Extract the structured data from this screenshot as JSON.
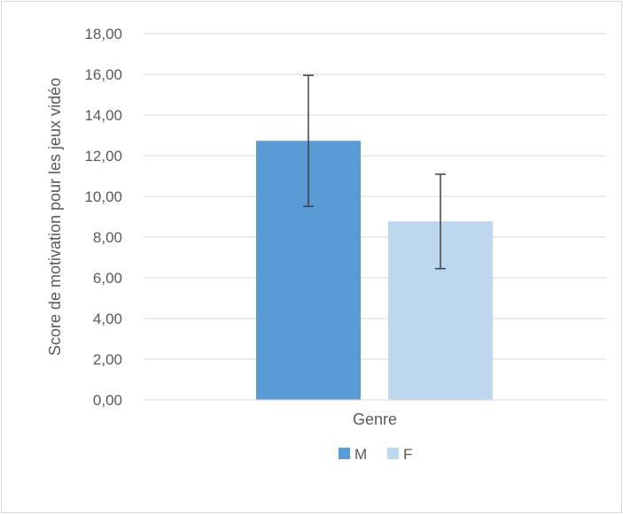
{
  "chart_data": {
    "type": "bar",
    "categories": [
      "Genre"
    ],
    "series": [
      {
        "name": "M",
        "values": [
          12.73
        ],
        "error": [
          3.22
        ],
        "color": "#5b9bd5"
      },
      {
        "name": "F",
        "values": [
          8.77
        ],
        "error": [
          2.32
        ],
        "color": "#bdd7ee"
      }
    ],
    "title": "",
    "xlabel": "",
    "ylabel": "Score de motivation pour les jeux vidéo",
    "ylim": [
      0,
      18
    ],
    "yticks": [
      "0,00",
      "2,00",
      "4,00",
      "6,00",
      "8,00",
      "10,00",
      "12,00",
      "14,00",
      "16,00",
      "18,00"
    ],
    "grid": true,
    "legend": "bottom",
    "gridline_color": "#d9d9d9",
    "errorbar_color": "#404040"
  }
}
